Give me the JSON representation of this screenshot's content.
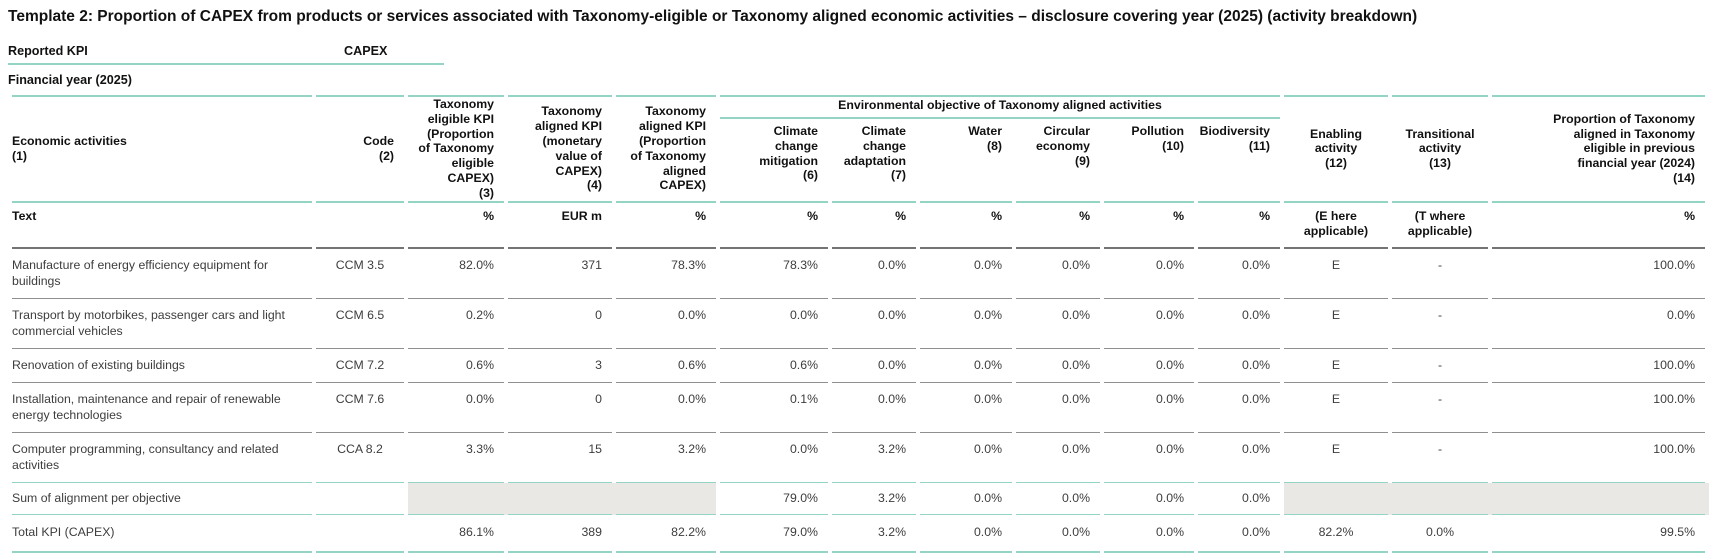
{
  "title": "Template 2: Proportion of CAPEX from products or services associated with Taxonomy-eligible or Taxonomy aligned economic activities – disclosure covering year (2025) (activity breakdown)",
  "meta": {
    "reported_kpi_label": "Reported KPI",
    "reported_kpi_value": "CAPEX",
    "financial_year_label": "Financial year (2025)"
  },
  "colors": {
    "accent_teal": "#93d4c4",
    "gray_line": "#8f8f8f",
    "shaded_cell": "#e9e8e5"
  },
  "table": {
    "env_group_header": "Environmental objective of Taxonomy aligned activities",
    "columns": [
      "Economic activities\n(1)",
      "Code\n(2)",
      "Taxonomy\neligible KPI\n(Proportion\nof Taxonomy\neligible\nCAPEX)\n(3)",
      "Taxonomy\naligned KPI\n(monetary\nvalue of\nCAPEX)\n(4)",
      "Taxonomy\naligned KPI\n(Proportion\nof Taxonomy\naligned\nCAPEX)",
      "Climate\nchange\nmitigation\n(6)",
      "Climate\nchange\nadaptation\n(7)",
      "Water\n(8)",
      "Circular\neconomy\n(9)",
      "Pollution\n(10)",
      "Biodiversity\n(11)",
      "Enabling\nactivity\n(12)",
      "Transitional\nactivity\n(13)",
      "Proportion of Taxonomy\naligned in Taxonomy\neligible in previous\nfinancial year (2024)\n(14)"
    ],
    "units": [
      "Text",
      "",
      "%",
      "EUR m",
      "%",
      "%",
      "%",
      "%",
      "%",
      "%",
      "%",
      "(E here\napplicable)",
      "(T where\napplicable)",
      "%"
    ],
    "rows": [
      {
        "type": "data",
        "cells": [
          "Manufacture of energy efficiency equipment for buildings",
          "CCM 3.5",
          "82.0%",
          "371",
          "78.3%",
          "78.3%",
          "0.0%",
          "0.0%",
          "0.0%",
          "0.0%",
          "0.0%",
          "E",
          "-",
          "100.0%"
        ]
      },
      {
        "type": "data",
        "cells": [
          "Transport by motorbikes, passenger cars and light commercial vehicles",
          "CCM 6.5",
          "0.2%",
          "0",
          "0.0%",
          "0.0%",
          "0.0%",
          "0.0%",
          "0.0%",
          "0.0%",
          "0.0%",
          "E",
          "-",
          "0.0%"
        ]
      },
      {
        "type": "data",
        "cells": [
          "Renovation of existing buildings",
          "CCM 7.2",
          "0.6%",
          "3",
          "0.6%",
          "0.6%",
          "0.0%",
          "0.0%",
          "0.0%",
          "0.0%",
          "0.0%",
          "E",
          "-",
          "100.0%"
        ]
      },
      {
        "type": "data",
        "cells": [
          "Installation, maintenance and repair of renewable energy technologies",
          "CCM 7.6",
          "0.0%",
          "0",
          "0.0%",
          "0.1%",
          "0.0%",
          "0.0%",
          "0.0%",
          "0.0%",
          "0.0%",
          "E",
          "-",
          "100.0%"
        ]
      },
      {
        "type": "data-last",
        "cells": [
          "Computer programming, consultancy and related activities",
          "CCA 8.2",
          "3.3%",
          "15",
          "3.2%",
          "0.0%",
          "3.2%",
          "0.0%",
          "0.0%",
          "0.0%",
          "0.0%",
          "E",
          "-",
          "100.0%"
        ]
      },
      {
        "type": "sum",
        "cells": [
          "Sum of alignment per objective",
          "",
          null,
          null,
          null,
          "79.0%",
          "3.2%",
          "0.0%",
          "0.0%",
          "0.0%",
          "0.0%",
          null,
          null,
          null
        ]
      },
      {
        "type": "total",
        "cells": [
          "Total KPI (CAPEX)",
          "",
          "86.1%",
          "389",
          "82.2%",
          "79.0%",
          "3.2%",
          "0.0%",
          "0.0%",
          "0.0%",
          "0.0%",
          "82.2%",
          "0.0%",
          "99.5%"
        ]
      }
    ]
  }
}
